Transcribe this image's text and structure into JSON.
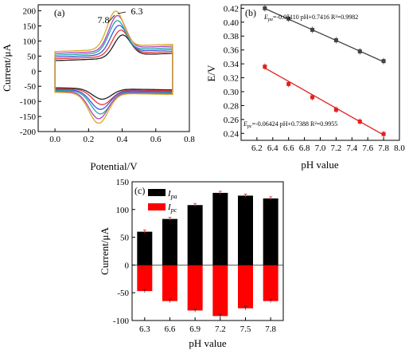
{
  "chart_data": [
    {
      "type": "line",
      "panel_label": "(a)",
      "xlabel": "Potential/V",
      "ylabel": "Current/μA",
      "xlim": [
        -0.1,
        0.8
      ],
      "ylim": [
        -200,
        220
      ],
      "xticks": [
        "0.0",
        "0.2",
        "0.4",
        "0.6",
        "0.8"
      ],
      "yticks": [
        "-200",
        "-150",
        "-100",
        "-50",
        "0",
        "50",
        "100",
        "150",
        "200"
      ],
      "annotations": [
        "7.8",
        "6.3"
      ],
      "series": [
        {
          "color": "#222222",
          "peak_anodic": [
            0.4,
            122
          ],
          "peak_cathodic": [
            0.28,
            -90
          ]
        },
        {
          "color": "#e33b3b",
          "peak_anodic": [
            0.39,
            132
          ],
          "peak_cathodic": [
            0.28,
            -105
          ]
        },
        {
          "color": "#3d55d8",
          "peak_anodic": [
            0.38,
            142
          ],
          "peak_cathodic": [
            0.27,
            -118
          ]
        },
        {
          "color": "#22a6a6",
          "peak_anodic": [
            0.37,
            152
          ],
          "peak_cathodic": [
            0.27,
            -130
          ]
        },
        {
          "color": "#b040b8",
          "peak_anodic": [
            0.37,
            163
          ],
          "peak_cathodic": [
            0.26,
            -143
          ]
        },
        {
          "color": "#d8a828",
          "peak_anodic": [
            0.36,
            172
          ],
          "peak_cathodic": [
            0.26,
            -155
          ]
        }
      ]
    },
    {
      "type": "scatter",
      "panel_label": "(b)",
      "xlabel": "pH value",
      "ylabel": "E/V",
      "xlim": [
        6.0,
        8.0
      ],
      "ylim": [
        0.23,
        0.425
      ],
      "xticks": [
        "6.2",
        "6.4",
        "6.6",
        "6.8",
        "7.0",
        "7.2",
        "7.4",
        "7.6",
        "7.8",
        "8.0"
      ],
      "yticks": [
        "0.24",
        "0.26",
        "0.28",
        "0.30",
        "0.32",
        "0.34",
        "0.36",
        "0.38",
        "0.40",
        "0.42"
      ],
      "series": [
        {
          "color": "#444444",
          "x": [
            6.3,
            6.6,
            6.9,
            7.2,
            7.5,
            7.8
          ],
          "y": [
            0.42,
            0.405,
            0.389,
            0.374,
            0.358,
            0.344
          ],
          "fit": {
            "slope": -0.0511,
            "intercept": 0.7416
          },
          "equation": {
            "var": "E",
            "sub": "pa",
            "rest": "=-0.05110 pH+0.7416 R²=0.9982"
          }
        },
        {
          "color": "#e02020",
          "x": [
            6.3,
            6.6,
            6.9,
            7.2,
            7.5,
            7.8
          ],
          "y": [
            0.336,
            0.311,
            0.292,
            0.274,
            0.257,
            0.239
          ],
          "fit": {
            "slope": -0.06424,
            "intercept": 0.7388
          },
          "equation": {
            "var": "E",
            "sub": "pc",
            "rest": "=-0.06424 pH+0.7388 R²=0.9955"
          }
        }
      ]
    },
    {
      "type": "bar",
      "panel_label": "(c)",
      "xlabel": "pH value",
      "ylabel": "Current/μA",
      "ylim": [
        -100,
        150
      ],
      "yticks": [
        "-100",
        "-50",
        "0",
        "50",
        "100",
        "150"
      ],
      "categories": [
        "6.3",
        "6.6",
        "6.9",
        "7.2",
        "7.5",
        "7.8"
      ],
      "series": [
        {
          "name": "I",
          "sub": "pa",
          "color": "#000000",
          "values": [
            60,
            83,
            108,
            130,
            125,
            120
          ]
        },
        {
          "name": "I",
          "sub": "pc",
          "color": "#ff0000",
          "values": [
            -47,
            -65,
            -82,
            -92,
            -78,
            -65
          ]
        }
      ]
    }
  ]
}
